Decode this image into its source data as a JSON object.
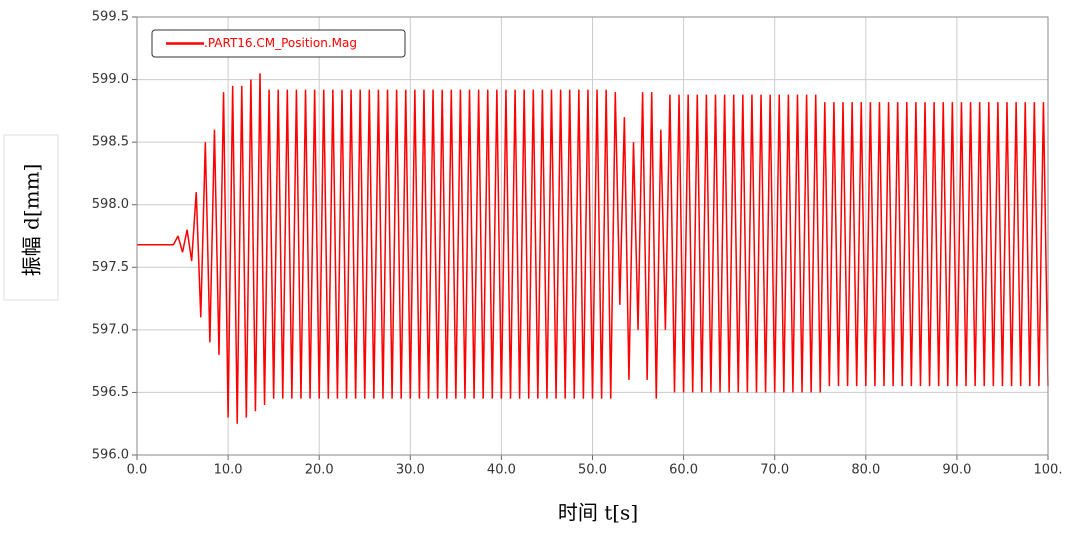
{
  "chart_data": {
    "type": "line",
    "x_label": "时间 t[s]",
    "y_label": "振幅 d[mm]",
    "xlim": [
      0,
      100
    ],
    "ylim": [
      596,
      599.5
    ],
    "xticks": [
      {
        "value": 0,
        "label": "0.0"
      },
      {
        "value": 10,
        "label": "10.0"
      },
      {
        "value": 20,
        "label": "20.0"
      },
      {
        "value": 30,
        "label": "30.0"
      },
      {
        "value": 40,
        "label": "40.0"
      },
      {
        "value": 50,
        "label": "50.0"
      },
      {
        "value": 60,
        "label": "60.0"
      },
      {
        "value": 70,
        "label": "70.0"
      },
      {
        "value": 80,
        "label": "80.0"
      },
      {
        "value": 90,
        "label": "90.0"
      },
      {
        "value": 100,
        "label": "100."
      }
    ],
    "yticks": [
      {
        "value": 596,
        "label": "596.0"
      },
      596.5,
      {
        "value": 597,
        "label": "597.0"
      },
      597.5,
      {
        "value": 598,
        "label": "598.0"
      },
      598.5,
      {
        "value": 599,
        "label": "599.0"
      },
      599.5
    ],
    "grid": true,
    "legend": "upper left",
    "x": [
      0,
      0.5,
      1,
      1.5,
      2,
      2.5,
      3,
      3.5,
      4,
      4.5,
      5,
      5.5,
      6,
      6.5,
      7,
      7.5,
      8,
      8.5,
      9,
      9.5,
      10,
      10.5,
      11,
      11.5,
      12,
      12.5,
      13,
      13.5,
      14,
      14.5,
      15,
      15.5,
      16,
      16.5,
      17,
      17.5,
      18,
      18.5,
      19,
      19.5,
      20,
      20.5,
      21,
      21.5,
      22,
      22.5,
      23,
      23.5,
      24,
      24.5,
      25,
      25.5,
      26,
      26.5,
      27,
      27.5,
      28,
      28.5,
      29,
      29.5,
      30,
      30.5,
      31,
      31.5,
      32,
      32.5,
      33,
      33.5,
      34,
      34.5,
      35,
      35.5,
      36,
      36.5,
      37,
      37.5,
      38,
      38.5,
      39,
      39.5,
      40,
      40.5,
      41,
      41.5,
      42,
      42.5,
      43,
      43.5,
      44,
      44.5,
      45,
      45.5,
      46,
      46.5,
      47,
      47.5,
      48,
      48.5,
      49,
      49.5,
      50,
      50.5,
      51,
      51.5,
      52,
      52.5,
      53,
      53.5,
      54,
      54.5,
      55,
      55.5,
      56,
      56.5,
      57,
      57.5,
      58,
      58.5,
      59,
      59.5,
      60,
      60.5,
      61,
      61.5,
      62,
      62.5,
      63,
      63.5,
      64,
      64.5,
      65,
      65.5,
      66,
      66.5,
      67,
      67.5,
      68,
      68.5,
      69,
      69.5,
      70,
      70.5,
      71,
      71.5,
      72,
      72.5,
      73,
      73.5,
      74,
      74.5,
      75,
      75.5,
      76,
      76.5,
      77,
      77.5,
      78,
      78.5,
      79,
      79.5,
      80,
      80.5,
      81,
      81.5,
      82,
      82.5,
      83,
      83.5,
      84,
      84.5,
      85,
      85.5,
      86,
      86.5,
      87,
      87.5,
      88,
      88.5,
      89,
      89.5,
      90,
      90.5,
      91,
      91.5,
      92,
      92.5,
      93,
      93.5,
      94,
      94.5,
      95,
      95.5,
      96,
      96.5,
      97,
      97.5,
      98,
      98.5,
      99,
      99.5,
      100
    ],
    "series": [
      {
        "name": ".PART16.CM_Position.Mag",
        "color": "#ff0000",
        "values": [
          597.68,
          597.68,
          597.68,
          597.68,
          597.68,
          597.68,
          597.68,
          597.68,
          597.68,
          597.75,
          597.62,
          597.8,
          597.55,
          598.1,
          597.1,
          598.5,
          596.9,
          598.6,
          596.8,
          598.9,
          596.3,
          598.95,
          596.25,
          598.95,
          596.3,
          599.0,
          596.35,
          599.05,
          596.4,
          598.92,
          596.45,
          598.92,
          596.45,
          598.92,
          596.45,
          598.92,
          596.45,
          598.92,
          596.45,
          598.92,
          596.45,
          598.92,
          596.45,
          598.92,
          596.45,
          598.92,
          596.45,
          598.92,
          596.45,
          598.92,
          596.45,
          598.92,
          596.45,
          598.92,
          596.45,
          598.92,
          596.45,
          598.92,
          596.45,
          598.92,
          596.45,
          598.92,
          596.45,
          598.92,
          596.45,
          598.92,
          596.45,
          598.92,
          596.45,
          598.92,
          596.45,
          598.92,
          596.45,
          598.92,
          596.45,
          598.92,
          596.45,
          598.92,
          596.45,
          598.92,
          596.45,
          598.92,
          596.45,
          598.92,
          596.45,
          598.92,
          596.45,
          598.92,
          596.45,
          598.92,
          596.45,
          598.92,
          596.45,
          598.92,
          596.45,
          598.92,
          596.45,
          598.92,
          596.45,
          598.92,
          596.45,
          598.92,
          596.45,
          598.92,
          596.45,
          598.9,
          597.2,
          598.7,
          596.6,
          598.5,
          597.0,
          598.9,
          596.6,
          598.9,
          596.45,
          598.6,
          597.0,
          598.88,
          596.5,
          598.88,
          596.5,
          598.88,
          596.5,
          598.88,
          596.5,
          598.88,
          596.5,
          598.88,
          596.5,
          598.88,
          596.5,
          598.88,
          596.5,
          598.88,
          596.5,
          598.88,
          596.5,
          598.88,
          596.5,
          598.88,
          596.5,
          598.88,
          596.5,
          598.88,
          596.5,
          598.88,
          596.5,
          598.88,
          596.5,
          598.88,
          596.5,
          598.82,
          596.55,
          598.82,
          596.55,
          598.82,
          596.55,
          598.82,
          596.55,
          598.82,
          596.55,
          598.82,
          596.55,
          598.82,
          596.55,
          598.82,
          596.55,
          598.82,
          596.55,
          598.82,
          596.55,
          598.82,
          596.55,
          598.82,
          596.55,
          598.82,
          596.55,
          598.82,
          596.55,
          598.82,
          596.55,
          598.82,
          596.55,
          598.82,
          596.55,
          598.82,
          596.55,
          598.82,
          596.55,
          598.82,
          596.55,
          598.82,
          596.55,
          598.82,
          596.55,
          598.82,
          596.55,
          598.82,
          596.55,
          598.82,
          596.55
        ]
      }
    ]
  }
}
